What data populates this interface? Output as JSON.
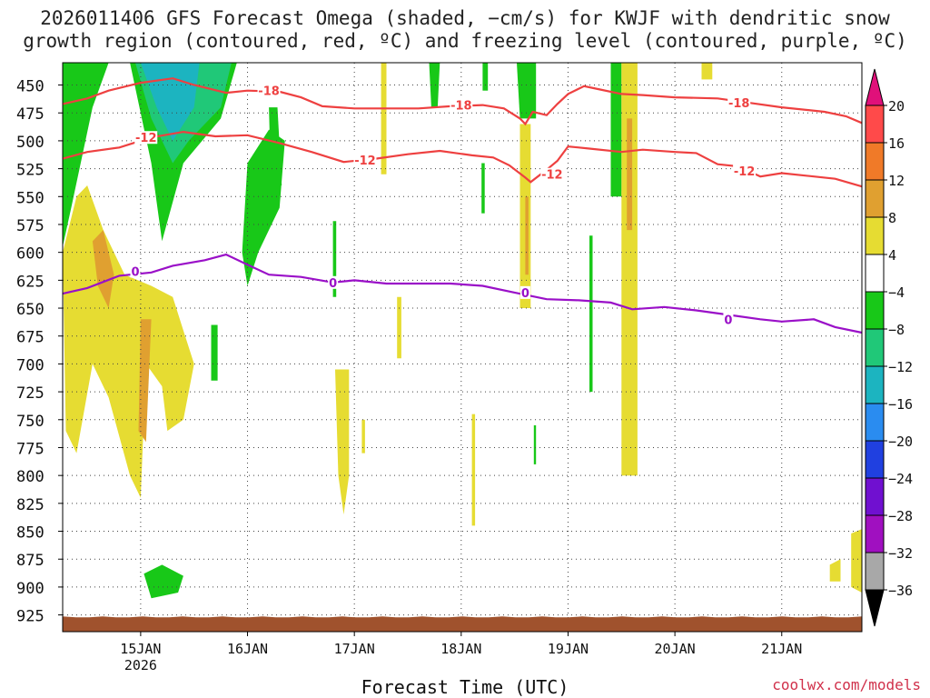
{
  "title": {
    "line1": "2026011406 GFS Forecast Omega (shaded, −cm/s) for KWJF with dendritic snow",
    "line2": "growth region (contoured, red, ºC) and freezing level (contoured, purple, ºC)"
  },
  "xlabel": "Forecast Time (UTC)",
  "credit": "coolwx.com/models",
  "chart_data": {
    "type": "heatmap",
    "x_axis": {
      "ticks": [
        "15JAN",
        "16JAN",
        "17JAN",
        "18JAN",
        "19JAN",
        "20JAN",
        "21JAN"
      ],
      "year_label": "2026",
      "range_days": [
        14.27,
        21.75
      ]
    },
    "y_axis": {
      "ticks": [
        450,
        475,
        500,
        525,
        550,
        575,
        600,
        625,
        650,
        675,
        700,
        725,
        750,
        775,
        800,
        825,
        850,
        875,
        900,
        925
      ],
      "range_hpa": [
        430,
        940
      ],
      "grid": true
    },
    "colorbar": {
      "labels": [
        "20",
        "16",
        "12",
        "8",
        "4",
        "−4",
        "−8",
        "−12",
        "−16",
        "−20",
        "−24",
        "−28",
        "−32",
        "−36"
      ],
      "bins": [
        {
          "range": [
            16,
            20
          ],
          "color": "#ff4a4a"
        },
        {
          "range": [
            12,
            16
          ],
          "color": "#f07a28"
        },
        {
          "range": [
            8,
            12
          ],
          "color": "#e0a030"
        },
        {
          "range": [
            4,
            8
          ],
          "color": "#e6dc32"
        },
        {
          "range": [
            -4,
            4
          ],
          "color": "#ffffff"
        },
        {
          "range": [
            -8,
            -4
          ],
          "color": "#18c818"
        },
        {
          "range": [
            -12,
            -8
          ],
          "color": "#20c878"
        },
        {
          "range": [
            -16,
            -12
          ],
          "color": "#1cb4c0"
        },
        {
          "range": [
            -20,
            -16
          ],
          "color": "#2a8cf0"
        },
        {
          "range": [
            -24,
            -20
          ],
          "color": "#2040e0"
        },
        {
          "range": [
            -28,
            -24
          ],
          "color": "#7010d0"
        },
        {
          "range": [
            -32,
            -28
          ],
          "color": "#a010c0"
        },
        {
          "range": [
            -36,
            -32
          ],
          "color": "#a8a8a8"
        }
      ],
      "extend_max_color": "#e0107a",
      "extend_min_color": "#000000"
    },
    "contours": [
      {
        "label": "-18",
        "color": "#ee4040",
        "points": [
          [
            14.27,
            467
          ],
          [
            14.5,
            462
          ],
          [
            14.7,
            455
          ],
          [
            15.0,
            448
          ],
          [
            15.3,
            444
          ],
          [
            15.5,
            450
          ],
          [
            15.8,
            457
          ],
          [
            16.0,
            455
          ],
          [
            16.3,
            456
          ],
          [
            16.5,
            461
          ],
          [
            16.7,
            469
          ],
          [
            17.0,
            471
          ],
          [
            17.3,
            471
          ],
          [
            17.6,
            471
          ],
          [
            17.9,
            469
          ],
          [
            18.2,
            468
          ],
          [
            18.4,
            471
          ],
          [
            18.55,
            480
          ],
          [
            18.6,
            485
          ],
          [
            18.67,
            474
          ],
          [
            18.8,
            477
          ],
          [
            18.9,
            467
          ],
          [
            19.0,
            458
          ],
          [
            19.15,
            451
          ],
          [
            19.3,
            454
          ],
          [
            19.5,
            458
          ],
          [
            19.7,
            459
          ],
          [
            20.0,
            461
          ],
          [
            20.4,
            462
          ],
          [
            20.7,
            466
          ],
          [
            21.0,
            470
          ],
          [
            21.4,
            474
          ],
          [
            21.6,
            478
          ],
          [
            21.75,
            484
          ]
        ],
        "label_at": [
          [
            16.2,
            455
          ],
          [
            18.0,
            468
          ],
          [
            20.6,
            466
          ]
        ]
      },
      {
        "label": "-12",
        "color": "#ee4040",
        "points": [
          [
            14.27,
            516
          ],
          [
            14.5,
            510
          ],
          [
            14.8,
            506
          ],
          [
            15.1,
            497
          ],
          [
            15.4,
            492
          ],
          [
            15.7,
            496
          ],
          [
            16.0,
            495
          ],
          [
            16.3,
            502
          ],
          [
            16.6,
            510
          ],
          [
            16.9,
            519
          ],
          [
            17.2,
            516
          ],
          [
            17.5,
            512
          ],
          [
            17.8,
            509
          ],
          [
            18.1,
            513
          ],
          [
            18.3,
            515
          ],
          [
            18.45,
            522
          ],
          [
            18.6,
            533
          ],
          [
            18.65,
            537
          ],
          [
            18.8,
            526
          ],
          [
            18.9,
            518
          ],
          [
            19.0,
            505
          ],
          [
            19.2,
            507
          ],
          [
            19.5,
            510
          ],
          [
            19.7,
            508
          ],
          [
            20.0,
            510
          ],
          [
            20.2,
            511
          ],
          [
            20.4,
            521
          ],
          [
            20.6,
            523
          ],
          [
            20.8,
            532
          ],
          [
            21.0,
            529
          ],
          [
            21.3,
            532
          ],
          [
            21.5,
            534
          ],
          [
            21.75,
            541
          ]
        ],
        "label_at": [
          [
            15.05,
            497
          ],
          [
            17.1,
            517
          ],
          [
            18.85,
            530
          ],
          [
            20.65,
            527
          ]
        ]
      },
      {
        "label": "0",
        "color": "#9a10c8",
        "points": [
          [
            14.27,
            637
          ],
          [
            14.5,
            632
          ],
          [
            14.8,
            621
          ],
          [
            15.1,
            618
          ],
          [
            15.3,
            612
          ],
          [
            15.6,
            607
          ],
          [
            15.8,
            602
          ],
          [
            16.0,
            611
          ],
          [
            16.2,
            620
          ],
          [
            16.5,
            622
          ],
          [
            16.8,
            627
          ],
          [
            17.0,
            625
          ],
          [
            17.3,
            628
          ],
          [
            17.6,
            628
          ],
          [
            17.9,
            628
          ],
          [
            18.2,
            630
          ],
          [
            18.5,
            636
          ],
          [
            18.8,
            642
          ],
          [
            19.1,
            643
          ],
          [
            19.4,
            645
          ],
          [
            19.6,
            651
          ],
          [
            19.9,
            649
          ],
          [
            20.2,
            652
          ],
          [
            20.5,
            656
          ],
          [
            20.8,
            660
          ],
          [
            21.0,
            662
          ],
          [
            21.3,
            660
          ],
          [
            21.5,
            667
          ],
          [
            21.75,
            672
          ]
        ],
        "label_at": [
          [
            14.95,
            617
          ],
          [
            16.8,
            627
          ],
          [
            18.6,
            636
          ],
          [
            20.5,
            660
          ]
        ]
      }
    ]
  }
}
